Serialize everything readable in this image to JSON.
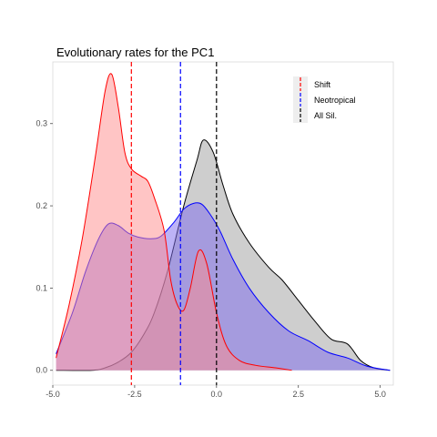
{
  "chart_data": {
    "type": "area",
    "title": "Evolutionary rates for the PC1",
    "xlabel": "",
    "ylabel": "",
    "xlim": [
      -5.0,
      5.4
    ],
    "ylim": [
      -0.018,
      0.375
    ],
    "x_ticks": [
      -5.0,
      -2.5,
      0.0,
      2.5,
      5.0
    ],
    "x_tick_labels": [
      "-5.0",
      "-2.5",
      "0.0",
      "2.5",
      "5.0"
    ],
    "y_ticks": [
      0.0,
      0.1,
      0.2,
      0.3
    ],
    "y_tick_labels": [
      "0.0",
      "0.1",
      "0.2",
      "0.3"
    ],
    "grid": false,
    "legend_position": "top-right",
    "series": [
      {
        "name": "All Sil.",
        "color": "#000000",
        "fill": "#9e9e9e",
        "mean": 0.0,
        "x": [
          -4.9,
          -3.8,
          -3.4,
          -3.0,
          -2.6,
          -2.2,
          -1.9,
          -1.5,
          -1.0,
          -0.6,
          -0.4,
          -0.1,
          0.2,
          0.5,
          1.0,
          1.6,
          2.0,
          2.5,
          3.0,
          3.5,
          4.0,
          4.4,
          4.8,
          5.3
        ],
        "values": [
          0.0,
          0.0,
          0.003,
          0.01,
          0.022,
          0.045,
          0.07,
          0.12,
          0.2,
          0.255,
          0.28,
          0.265,
          0.225,
          0.19,
          0.155,
          0.125,
          0.11,
          0.085,
          0.06,
          0.038,
          0.032,
          0.012,
          0.003,
          0.0
        ]
      },
      {
        "name": "Neotropical",
        "color": "#0000ff",
        "fill": "#7b68ee",
        "mean": -1.1,
        "x": [
          -4.9,
          -4.4,
          -4.0,
          -3.6,
          -3.3,
          -3.0,
          -2.7,
          -2.4,
          -2.0,
          -1.7,
          -1.3,
          -1.0,
          -0.7,
          -0.45,
          -0.2,
          0.1,
          0.5,
          1.0,
          1.6,
          2.2,
          2.8,
          3.4,
          4.0,
          4.6,
          5.3
        ],
        "values": [
          0.02,
          0.07,
          0.12,
          0.16,
          0.178,
          0.176,
          0.167,
          0.162,
          0.16,
          0.163,
          0.18,
          0.196,
          0.203,
          0.202,
          0.19,
          0.17,
          0.135,
          0.1,
          0.07,
          0.048,
          0.036,
          0.022,
          0.015,
          0.005,
          0.0
        ]
      },
      {
        "name": "Shift",
        "color": "#ff0000",
        "fill": "#ff8c8c",
        "mean": -2.6,
        "x": [
          -4.9,
          -4.5,
          -4.1,
          -3.7,
          -3.4,
          -3.2,
          -3.0,
          -2.8,
          -2.6,
          -2.3,
          -2.1,
          -1.9,
          -1.6,
          -1.4,
          -1.2,
          -1.0,
          -0.8,
          -0.55,
          -0.3,
          0.0,
          0.3,
          0.7,
          1.2,
          1.8,
          2.3
        ],
        "values": [
          0.015,
          0.08,
          0.16,
          0.26,
          0.34,
          0.36,
          0.32,
          0.265,
          0.245,
          0.236,
          0.23,
          0.21,
          0.17,
          0.11,
          0.08,
          0.073,
          0.1,
          0.145,
          0.13,
          0.07,
          0.03,
          0.012,
          0.006,
          0.003,
          0.0
        ]
      }
    ],
    "legend_order": [
      "Shift",
      "Neotropical",
      "All Sil."
    ]
  }
}
